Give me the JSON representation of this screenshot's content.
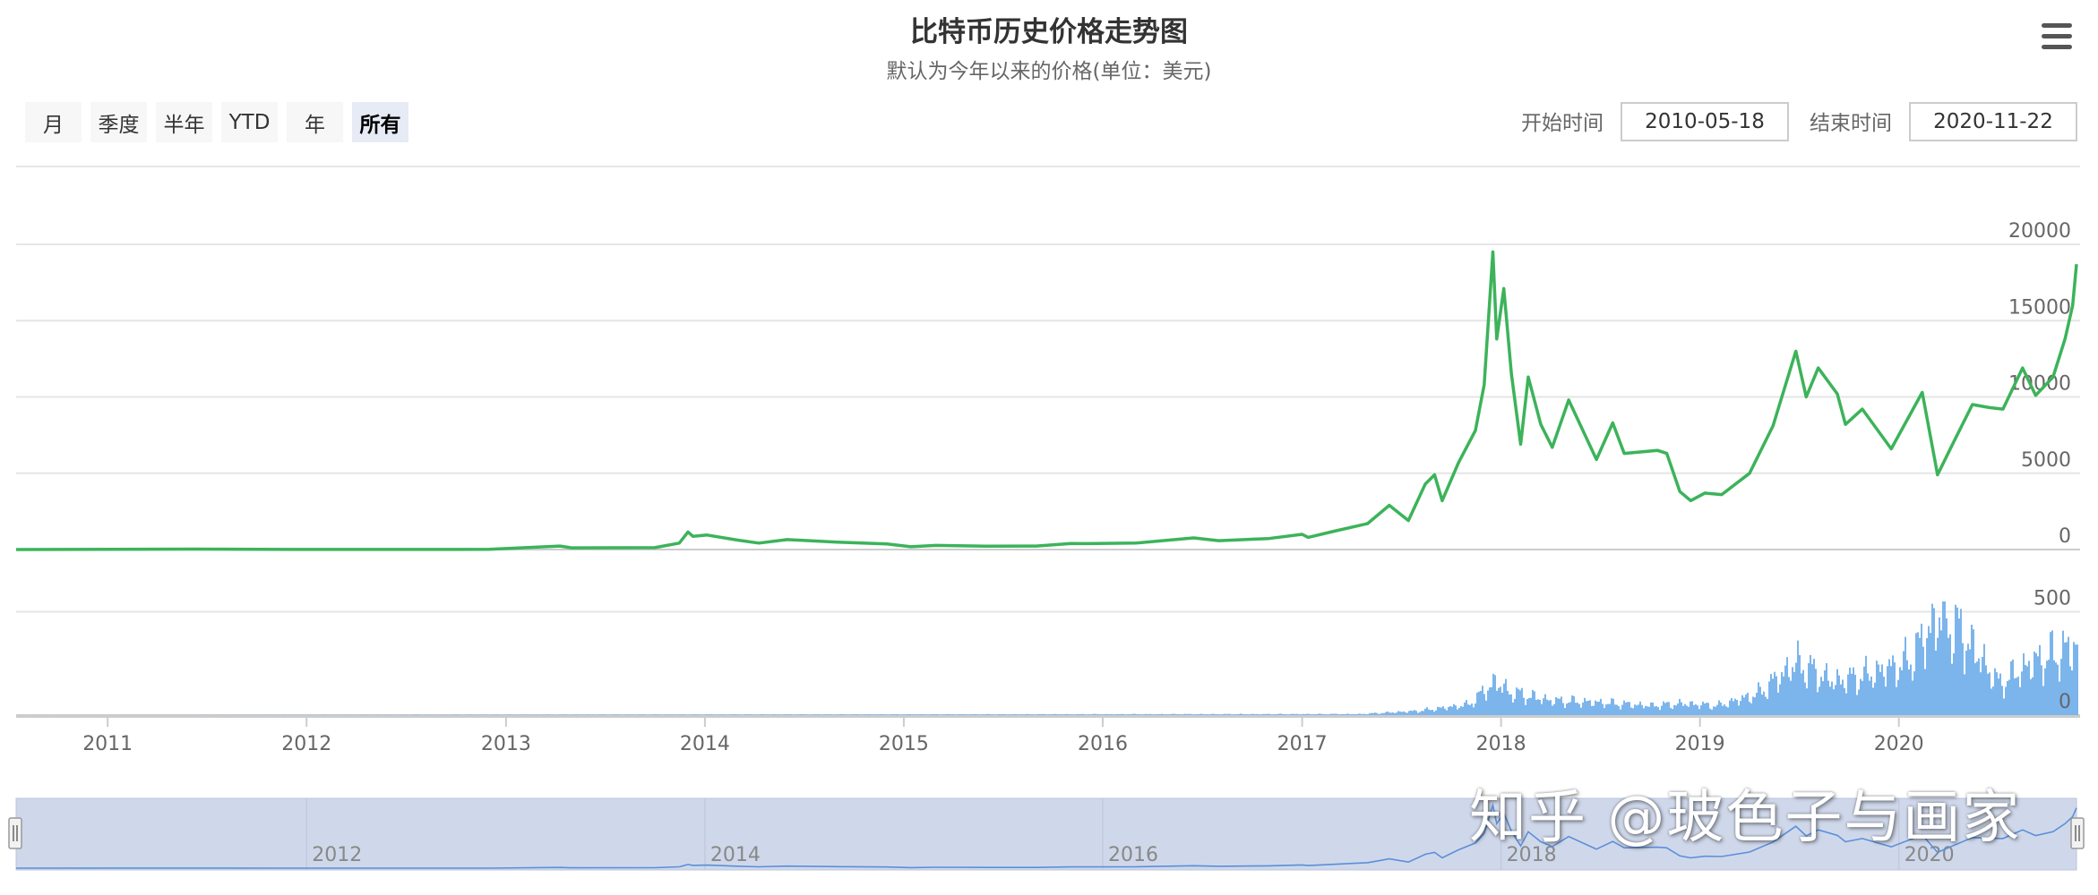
{
  "header": {
    "title": "比特币历史价格走势图",
    "subtitle": "默认为今年以来的价格(单位：美元)"
  },
  "range_selector": {
    "buttons": [
      {
        "label": "月",
        "active": false
      },
      {
        "label": "季度",
        "active": false
      },
      {
        "label": "半年",
        "active": false
      },
      {
        "label": "YTD",
        "active": false
      },
      {
        "label": "年",
        "active": false
      },
      {
        "label": "所有",
        "active": true
      }
    ]
  },
  "date_range": {
    "start_label": "开始时间",
    "start_value": "2010-05-18",
    "end_label": "结束时间",
    "end_value": "2020-11-22"
  },
  "watermark": "知乎 @玻色子与画家",
  "colors": {
    "price_line": "#3cb35a",
    "volume_bar": "#7cb5ec",
    "navigator_mask": "#cfd8ea",
    "navigator_line": "#5b8fd9"
  },
  "icons": {
    "menu": "hamburger-menu-icon"
  },
  "chart_data": {
    "type": "line",
    "x_range": [
      "2010-07-17",
      "2020-11-22"
    ],
    "x_tick_labels": [
      "2011",
      "2012",
      "2013",
      "2014",
      "2015",
      "2016",
      "2017",
      "2018",
      "2019",
      "2020"
    ],
    "navigator_tick_labels": [
      "2012",
      "2014",
      "2016",
      "2018",
      "2020"
    ],
    "price_axis": {
      "ylim": [
        0,
        20000
      ],
      "ticks": [
        0,
        5000,
        10000,
        15000,
        20000
      ]
    },
    "volume_axis": {
      "ylim": [
        0,
        550
      ],
      "ticks": [
        0,
        500
      ]
    },
    "grid": true,
    "price_series": [
      [
        "2010-07-17",
        0.05
      ],
      [
        "2011-06-08",
        30
      ],
      [
        "2011-12-01",
        3
      ],
      [
        "2012-06-01",
        6
      ],
      [
        "2012-12-01",
        13
      ],
      [
        "2013-04-10",
        230
      ],
      [
        "2013-05-01",
        110
      ],
      [
        "2013-10-01",
        125
      ],
      [
        "2013-11-15",
        420
      ],
      [
        "2013-12-01",
        1150
      ],
      [
        "2013-12-10",
        870
      ],
      [
        "2014-01-05",
        950
      ],
      [
        "2014-03-01",
        620
      ],
      [
        "2014-04-10",
        420
      ],
      [
        "2014-06-01",
        650
      ],
      [
        "2014-09-01",
        480
      ],
      [
        "2014-12-01",
        370
      ],
      [
        "2015-01-14",
        180
      ],
      [
        "2015-03-01",
        270
      ],
      [
        "2015-06-01",
        225
      ],
      [
        "2015-09-01",
        230
      ],
      [
        "2015-11-04",
        400
      ],
      [
        "2015-12-01",
        390
      ],
      [
        "2016-03-01",
        420
      ],
      [
        "2016-06-16",
        760
      ],
      [
        "2016-08-01",
        580
      ],
      [
        "2016-11-01",
        720
      ],
      [
        "2017-01-01",
        1000
      ],
      [
        "2017-01-12",
        800
      ],
      [
        "2017-03-01",
        1200
      ],
      [
        "2017-05-01",
        1700
      ],
      [
        "2017-06-10",
        2900
      ],
      [
        "2017-07-15",
        1900
      ],
      [
        "2017-08-15",
        4300
      ],
      [
        "2017-09-01",
        4900
      ],
      [
        "2017-09-15",
        3200
      ],
      [
        "2017-10-15",
        5700
      ],
      [
        "2017-11-15",
        7800
      ],
      [
        "2017-12-01",
        10800
      ],
      [
        "2017-12-17",
        19500
      ],
      [
        "2017-12-24",
        13800
      ],
      [
        "2018-01-06",
        17100
      ],
      [
        "2018-01-20",
        11500
      ],
      [
        "2018-02-06",
        6900
      ],
      [
        "2018-02-20",
        11300
      ],
      [
        "2018-03-15",
        8200
      ],
      [
        "2018-04-05",
        6700
      ],
      [
        "2018-05-05",
        9800
      ],
      [
        "2018-06-25",
        5900
      ],
      [
        "2018-07-25",
        8300
      ],
      [
        "2018-08-15",
        6300
      ],
      [
        "2018-10-15",
        6500
      ],
      [
        "2018-11-01",
        6300
      ],
      [
        "2018-11-25",
        3800
      ],
      [
        "2018-12-15",
        3200
      ],
      [
        "2019-01-10",
        3700
      ],
      [
        "2019-02-10",
        3600
      ],
      [
        "2019-04-02",
        5000
      ],
      [
        "2019-05-15",
        8100
      ],
      [
        "2019-06-26",
        13000
      ],
      [
        "2019-07-15",
        10000
      ],
      [
        "2019-08-06",
        11900
      ],
      [
        "2019-09-10",
        10200
      ],
      [
        "2019-09-25",
        8200
      ],
      [
        "2019-10-26",
        9200
      ],
      [
        "2019-12-18",
        6600
      ],
      [
        "2020-02-13",
        10300
      ],
      [
        "2020-03-12",
        4900
      ],
      [
        "2020-04-10",
        7000
      ],
      [
        "2020-05-15",
        9500
      ],
      [
        "2020-06-15",
        9300
      ],
      [
        "2020-07-10",
        9200
      ],
      [
        "2020-08-15",
        11900
      ],
      [
        "2020-09-08",
        10100
      ],
      [
        "2020-10-10",
        11300
      ],
      [
        "2020-11-01",
        13800
      ],
      [
        "2020-11-15",
        16000
      ],
      [
        "2020-11-22",
        18700
      ]
    ],
    "volume_series": [
      [
        "2010-07-17",
        0
      ],
      [
        "2017-04-15",
        5
      ],
      [
        "2017-08-01",
        20
      ],
      [
        "2017-11-01",
        50
      ],
      [
        "2017-12-20",
        160
      ],
      [
        "2018-01-15",
        110
      ],
      [
        "2018-04-01",
        70
      ],
      [
        "2018-07-01",
        60
      ],
      [
        "2018-10-01",
        45
      ],
      [
        "2018-12-01",
        55
      ],
      [
        "2019-02-01",
        45
      ],
      [
        "2019-04-15",
        100
      ],
      [
        "2019-06-26",
        250
      ],
      [
        "2019-09-01",
        160
      ],
      [
        "2019-11-01",
        190
      ],
      [
        "2020-01-15",
        250
      ],
      [
        "2020-03-15",
        480
      ],
      [
        "2020-05-01",
        370
      ],
      [
        "2020-07-01",
        150
      ],
      [
        "2020-09-01",
        250
      ],
      [
        "2020-11-22",
        330
      ]
    ]
  }
}
